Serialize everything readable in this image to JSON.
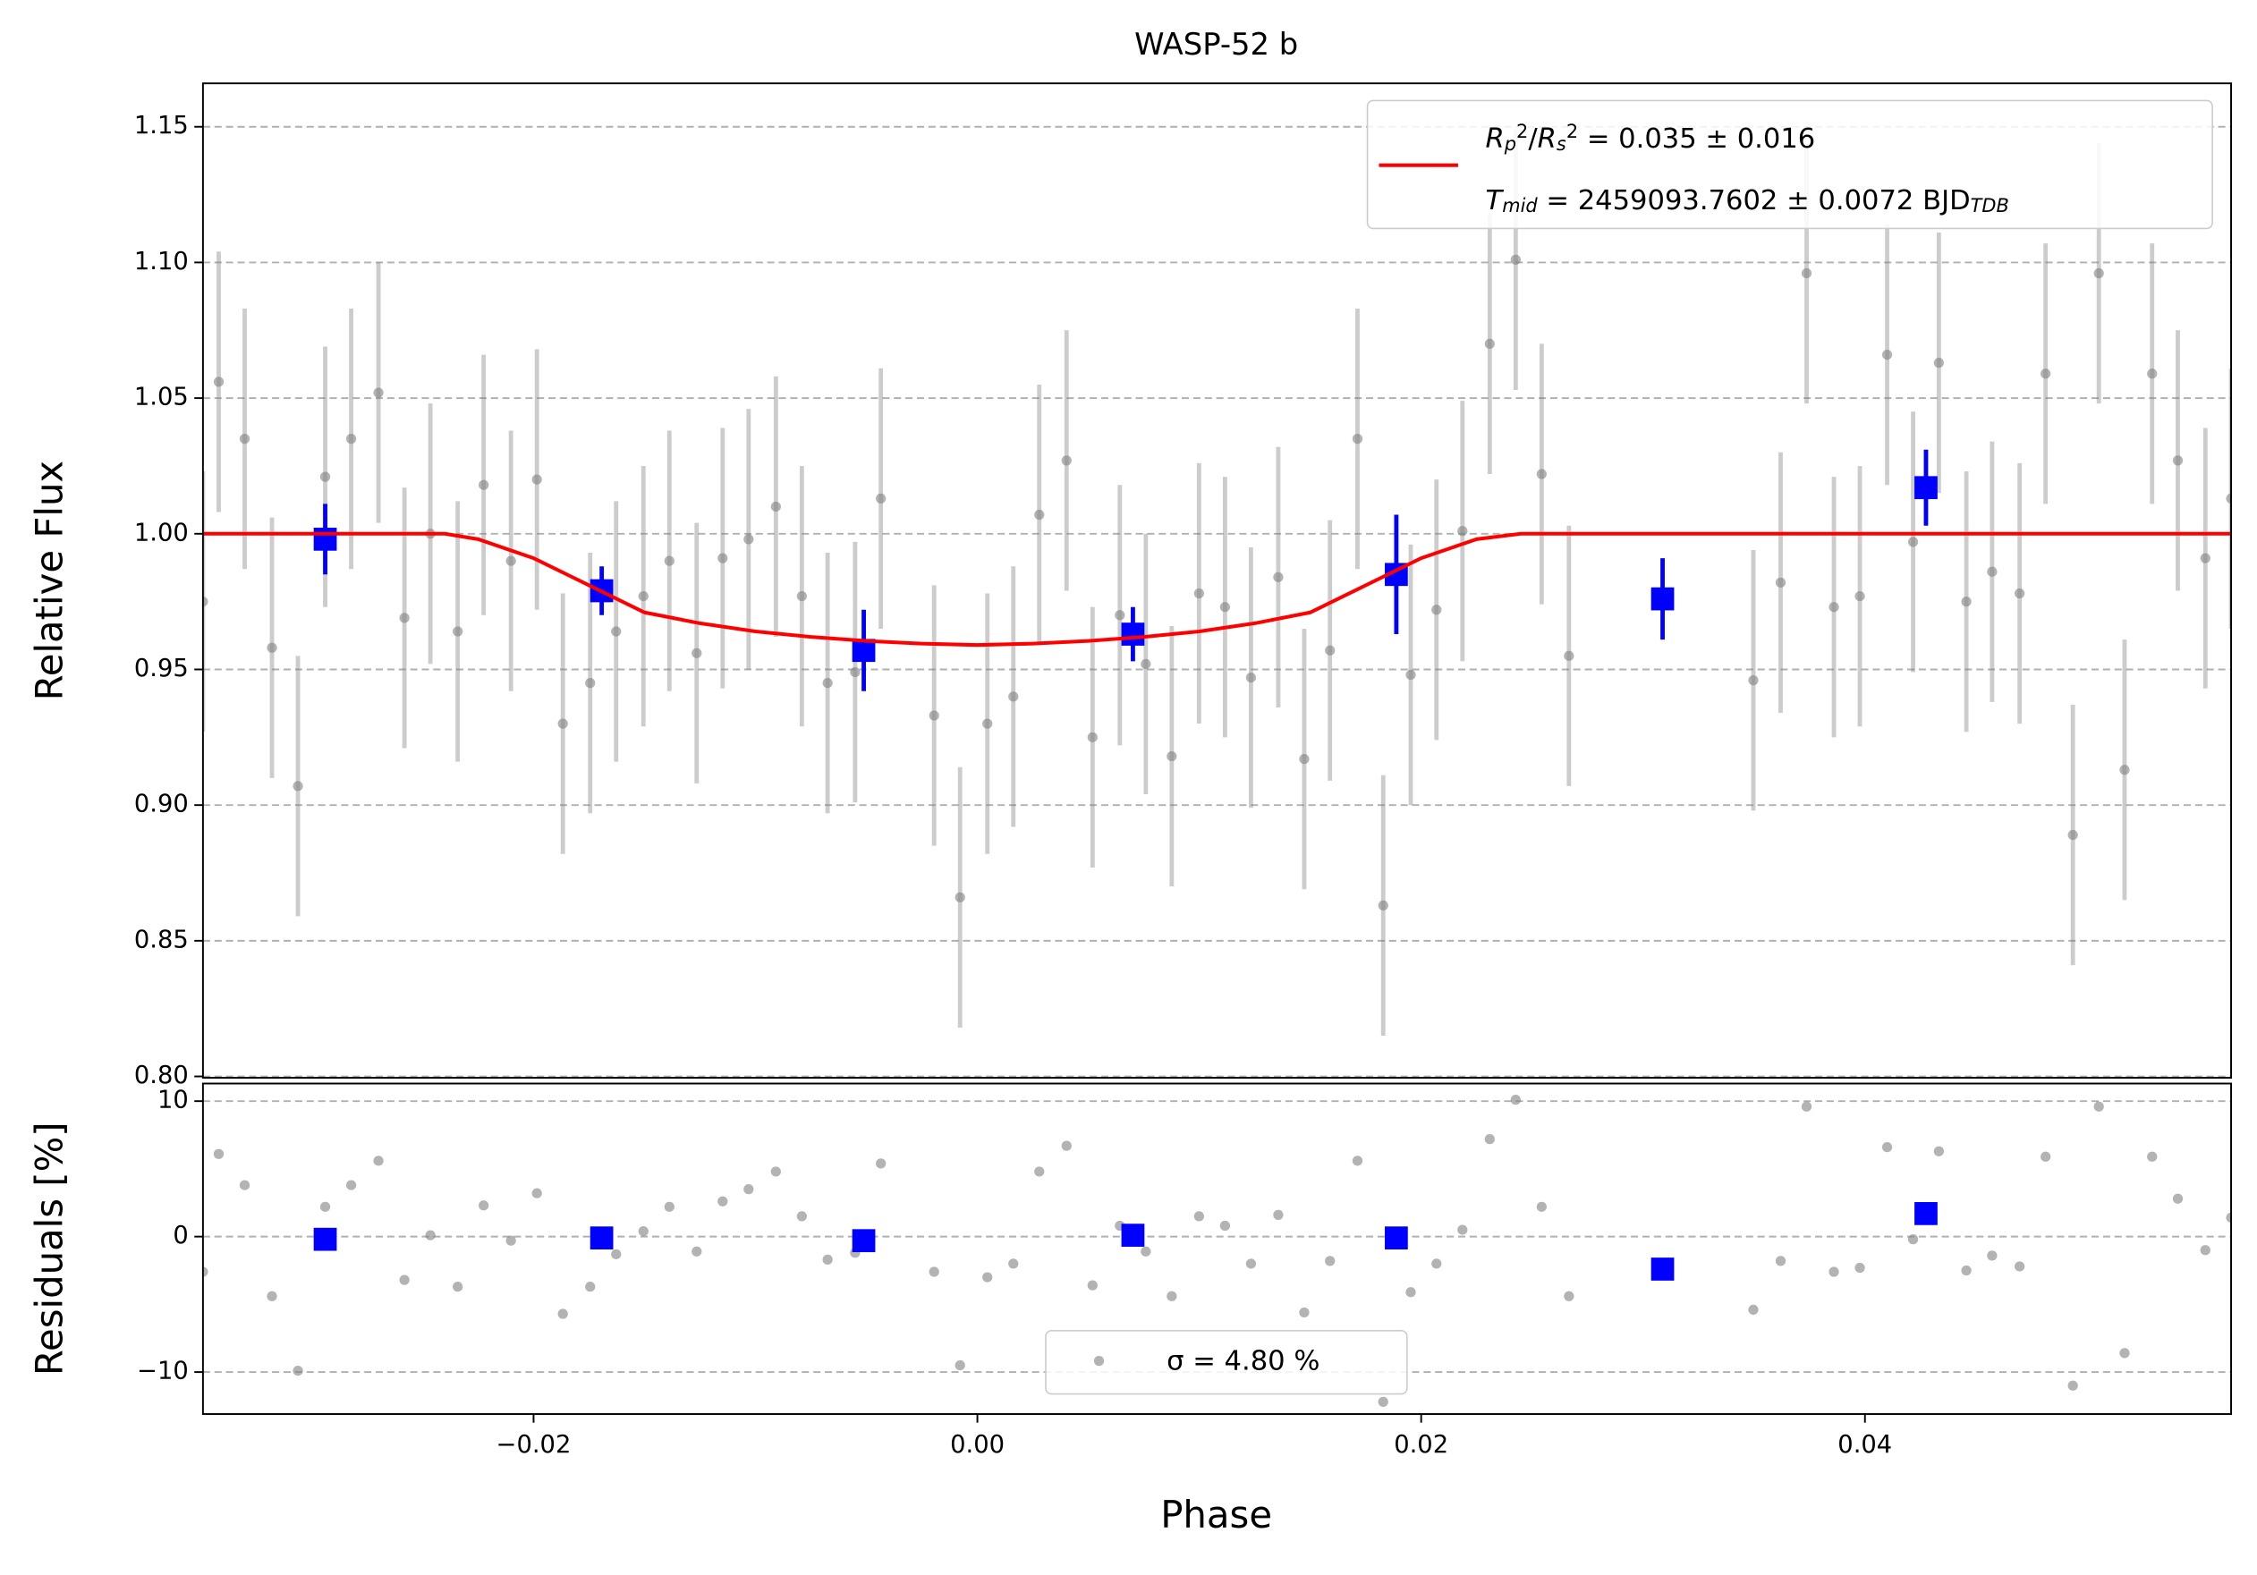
{
  "chart_data": [
    {
      "type": "errorbar",
      "title": "WASP-52 b",
      "ylabel": "Relative Flux",
      "xlim": [
        -0.0349,
        0.0565
      ],
      "ylim": [
        0.7995,
        1.166
      ],
      "yticks": [
        {
          "value": 0.8,
          "label": "0.80"
        },
        0.85,
        {
          "value": 0.9,
          "label": "0.90"
        },
        0.95,
        {
          "value": 1.0,
          "label": "1.00"
        },
        1.05,
        {
          "value": 1.1,
          "label": "1.10"
        },
        1.15
      ],
      "grid": true,
      "legend": "upper right",
      "series": [
        {
          "marker": "circle",
          "color": "#808080",
          "yerr": 0.048,
          "x": [
            -0.0349,
            -0.03419,
            -0.03302,
            -0.03179,
            -0.03062,
            -0.02939,
            -0.02822,
            -0.02699,
            -0.02582,
            -0.02465,
            -0.02342,
            -0.02225,
            -0.02102,
            -0.01985,
            -0.01868,
            -0.01745,
            -0.01628,
            -0.01505,
            -0.01388,
            -0.01265,
            -0.01148,
            -0.01031,
            -0.00908,
            -0.00791,
            -0.00675,
            -0.00551,
            -0.00435,
            -0.00195,
            -0.00078,
            0.00045,
            0.00162,
            0.00279,
            0.00402,
            0.00519,
            0.00642,
            0.00759,
            0.00876,
            0.00999,
            0.01116,
            0.01233,
            0.01356,
            0.01473,
            0.01589,
            0.01713,
            0.01829,
            0.01953,
            0.02069,
            0.02186,
            0.02309,
            0.02426,
            0.02543,
            0.02666,
            0.03497,
            0.0362,
            0.03737,
            0.0386,
            0.03977,
            0.041,
            0.04217,
            0.04333,
            0.04457,
            0.04573,
            0.04697,
            0.04814,
            0.04937,
            0.05054,
            0.0517,
            0.05294,
            0.0541,
            0.05534,
            0.0565
          ],
          "values": [
            0.975,
            1.056,
            1.035,
            0.958,
            0.907,
            1.021,
            1.035,
            1.052,
            0.969,
            1.0,
            0.964,
            1.018,
            0.99,
            1.02,
            0.93,
            0.945,
            0.964,
            0.977,
            0.99,
            0.956,
            0.991,
            0.998,
            1.01,
            0.977,
            0.945,
            0.949,
            1.013,
            0.933,
            0.866,
            0.93,
            0.94,
            1.007,
            1.027,
            0.925,
            0.97,
            0.952,
            0.918,
            0.978,
            0.973,
            0.947,
            0.984,
            0.917,
            0.957,
            1.035,
            0.863,
            0.948,
            0.972,
            1.001,
            1.07,
            1.101,
            1.022,
            0.955,
            0.946,
            0.982,
            1.096,
            0.973,
            0.977,
            1.066,
            0.997,
            1.063,
            0.975,
            0.986,
            0.978,
            1.059,
            0.889,
            1.096,
            0.913,
            1.059,
            1.027,
            0.991,
            1.013
          ]
        },
        {
          "marker": "square",
          "color": "#0000ff",
          "x": [
            -0.02939,
            -0.01693,
            -0.00512,
            0.00701,
            0.01888,
            0.03088,
            0.04275
          ],
          "values": [
            0.998,
            0.979,
            0.957,
            0.963,
            0.985,
            0.976,
            1.017
          ],
          "yerr": [
            0.013,
            0.009,
            0.015,
            0.01,
            0.022,
            0.015,
            0.014
          ]
        },
        {
          "marker": "line",
          "color": "#ff0000",
          "name_parts": [
            [
              [
                "R",
                "italic"
              ],
              [
                "p",
                "italic-sub"
              ],
              [
                "2",
                "sup"
              ],
              [
                "/",
                "normal"
              ],
              [
                "R",
                "italic"
              ],
              [
                "s",
                "italic-sub"
              ],
              [
                "2",
                "sup"
              ],
              [
                " = 0.035 ± 0.016",
                "normal"
              ]
            ],
            [
              [
                "T",
                "italic"
              ],
              [
                "mid",
                "italic-sub"
              ],
              [
                " = 2459093.7602 ± 0.0072 BJD",
                "normal"
              ],
              [
                "TDB",
                "italic-sub"
              ]
            ]
          ],
          "x": [
            -0.0349,
            -0.024,
            -0.0225,
            -0.02,
            -0.0175,
            -0.015,
            -0.0125,
            -0.01,
            -0.0075,
            -0.005,
            -0.0025,
            0,
            0.0025,
            0.005,
            0.0075,
            0.01,
            0.0125,
            0.015,
            0.0175,
            0.02,
            0.0225,
            0.0245,
            0.0565
          ],
          "values": [
            1.0,
            1.0,
            0.998,
            0.991,
            0.981,
            0.971,
            0.967,
            0.964,
            0.962,
            0.9605,
            0.9595,
            0.959,
            0.9595,
            0.9605,
            0.962,
            0.964,
            0.967,
            0.971,
            0.981,
            0.991,
            0.998,
            1.0,
            1.0
          ]
        }
      ]
    },
    {
      "type": "scatter",
      "ylabel": "Residuals [%]",
      "xlabel": "Phase",
      "xlim": [
        -0.0349,
        0.0565
      ],
      "ylim": [
        -13.1,
        11.3
      ],
      "xticks": [
        {
          "value": -0.02,
          "label": "−0.02"
        },
        {
          "value": 0,
          "label": "0.00"
        },
        {
          "value": 0.02,
          "label": "0.02"
        },
        {
          "value": 0.04,
          "label": "0.04"
        }
      ],
      "yticks": [
        {
          "value": -10,
          "label": "−10"
        },
        0,
        10
      ],
      "grid": true,
      "legend": "lower center",
      "series": [
        {
          "name": "σ = 4.80 %",
          "marker": "circle",
          "color": "#808080",
          "x": [
            -0.0349,
            -0.03419,
            -0.03302,
            -0.03179,
            -0.03062,
            -0.02939,
            -0.02822,
            -0.02699,
            -0.02582,
            -0.02465,
            -0.02342,
            -0.02225,
            -0.02102,
            -0.01985,
            -0.01868,
            -0.01745,
            -0.01628,
            -0.01505,
            -0.01388,
            -0.01265,
            -0.01148,
            -0.01031,
            -0.00908,
            -0.00791,
            -0.00675,
            -0.00551,
            -0.00435,
            -0.00195,
            -0.00078,
            0.00045,
            0.00162,
            0.00279,
            0.00402,
            0.00519,
            0.00642,
            0.00759,
            0.00876,
            0.00999,
            0.01116,
            0.01233,
            0.01356,
            0.01473,
            0.01589,
            0.01713,
            0.01829,
            0.01953,
            0.02069,
            0.02186,
            0.02309,
            0.02426,
            0.02543,
            0.02666,
            0.03497,
            0.0362,
            0.03737,
            0.0386,
            0.03977,
            0.041,
            0.04217,
            0.04333,
            0.04457,
            0.04573,
            0.04697,
            0.04814,
            0.04937,
            0.05054,
            0.0517,
            0.05294,
            0.0541,
            0.05534,
            0.0565
          ],
          "values": [
            -2.6,
            6.1,
            3.8,
            -4.4,
            -9.9,
            2.2,
            3.8,
            5.6,
            -3.2,
            0.1,
            -3.7,
            2.3,
            -0.3,
            3.2,
            -5.7,
            -3.7,
            -1.3,
            0.4,
            2.2,
            -1.1,
            2.6,
            3.5,
            4.8,
            1.5,
            -1.7,
            -1.2,
            5.4,
            -2.6,
            -9.5,
            -3.0,
            -2.0,
            4.8,
            6.7,
            -3.6,
            0.8,
            -1.1,
            -4.4,
            1.5,
            0.8,
            -2.0,
            1.6,
            -5.6,
            -1.8,
            5.6,
            -12.2,
            -4.1,
            -2.0,
            0.5,
            7.2,
            10.1,
            2.2,
            -4.4,
            -5.4,
            -1.8,
            9.6,
            -2.6,
            -2.3,
            6.6,
            -0.2,
            6.3,
            -2.5,
            -1.4,
            -2.2,
            5.9,
            -11.0,
            9.6,
            -8.6,
            5.9,
            2.8,
            -1.0,
            1.4
          ]
        },
        {
          "marker": "square",
          "color": "#0000ff",
          "x": [
            -0.02939,
            -0.01693,
            -0.00512,
            0.00701,
            0.01888,
            0.03088,
            0.04275
          ],
          "values": [
            -0.2,
            -0.1,
            -0.3,
            0.1,
            -0.1,
            -2.4,
            1.7
          ]
        }
      ]
    }
  ]
}
